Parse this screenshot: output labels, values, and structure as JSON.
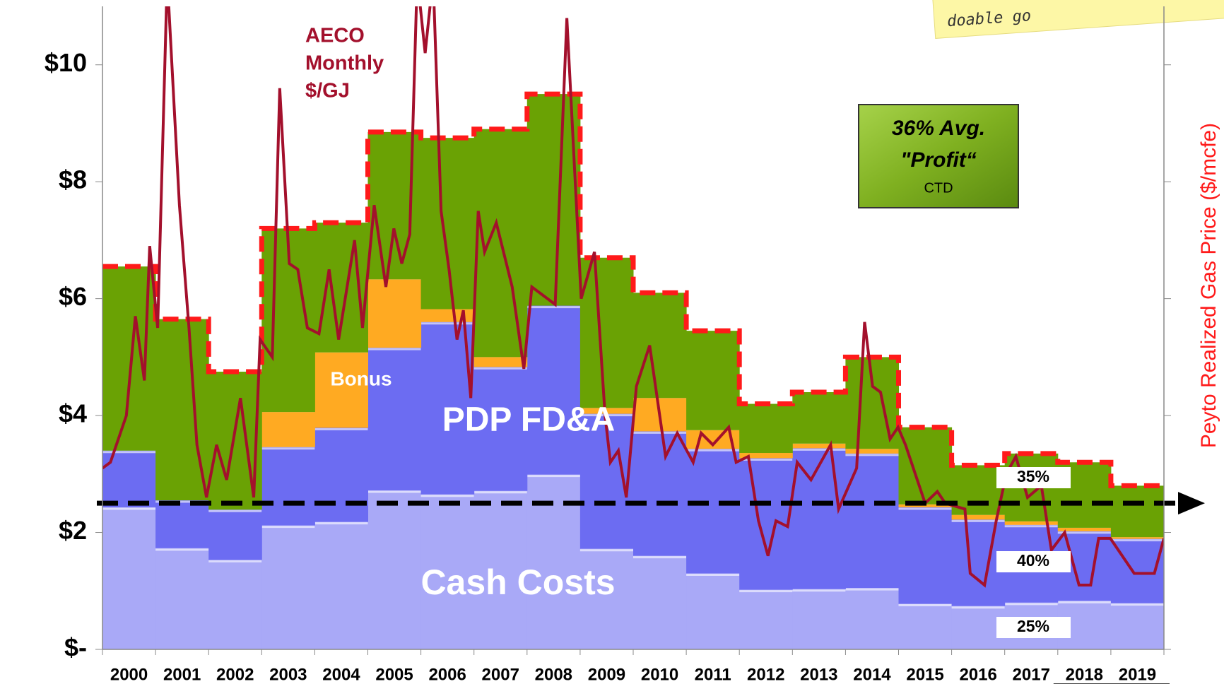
{
  "chart_data": {
    "type": "stacked-step-area",
    "categories": [
      "2000",
      "2001",
      "2002",
      "2003",
      "2004",
      "2005",
      "2006",
      "2007",
      "2008",
      "2009",
      "2010",
      "2011",
      "2012",
      "2013",
      "2014",
      "2015",
      "2016",
      "2017",
      "2018",
      "2019"
    ],
    "series": [
      {
        "name": "Cash Costs",
        "color": "#a9a9f7",
        "values": [
          2.43,
          1.73,
          1.53,
          2.12,
          2.18,
          2.72,
          2.65,
          2.71,
          2.99,
          1.72,
          1.6,
          1.3,
          1.02,
          1.03,
          1.05,
          0.78,
          0.74,
          0.8,
          0.83,
          0.79
        ]
      },
      {
        "name": "PDP FD&A",
        "color": "#6c6cf2",
        "values": [
          0.97,
          0.82,
          0.86,
          1.34,
          1.61,
          2.44,
          2.95,
          2.12,
          2.89,
          2.31,
          2.13,
          2.13,
          2.25,
          2.41,
          2.3,
          1.65,
          1.48,
          1.33,
          1.19,
          1.1
        ]
      },
      {
        "name": "Bonus",
        "color": "#ffaa22",
        "values": [
          0,
          0,
          0,
          0.6,
          1.29,
          1.17,
          0.22,
          0.17,
          0,
          0.1,
          0.57,
          0.32,
          0.09,
          0.08,
          0.08,
          0.05,
          0.08,
          0.06,
          0.06,
          0.03
        ]
      },
      {
        "name": "\"Profit“",
        "color": "#6aa204",
        "values": [
          3.15,
          3.1,
          2.36,
          3.14,
          2.22,
          2.52,
          2.93,
          3.9,
          3.62,
          2.57,
          1.8,
          1.7,
          0.84,
          0.88,
          1.57,
          1.32,
          0.85,
          1.16,
          1.12,
          0.88
        ]
      }
    ],
    "aeco": {
      "color": "#a3102c",
      "x": [
        2000.0,
        2000.15,
        2000.45,
        2000.62,
        2000.79,
        2000.89,
        2001.04,
        2001.22,
        2001.45,
        2001.63,
        2001.78,
        2001.96,
        2002.15,
        2002.34,
        2002.6,
        2002.85,
        2002.97,
        2003.2,
        2003.34,
        2003.52,
        2003.68,
        2003.86,
        2004.08,
        2004.27,
        2004.45,
        2004.75,
        2004.9,
        2005.12,
        2005.34,
        2005.49,
        2005.64,
        2005.79,
        2005.93,
        2006.08,
        2006.23,
        2006.38,
        2006.53,
        2006.68,
        2006.8,
        2006.94,
        2007.08,
        2007.2,
        2007.42,
        2007.72,
        2007.94,
        2008.09,
        2008.53,
        2008.75,
        2009.02,
        2009.27,
        2009.47,
        2009.57,
        2009.72,
        2009.87,
        2010.06,
        2010.31,
        2010.61,
        2010.83,
        2011.13,
        2011.28,
        2011.5,
        2011.8,
        2011.94,
        2012.17,
        2012.36,
        2012.54,
        2012.69,
        2012.91,
        2013.09,
        2013.35,
        2013.72,
        2013.87,
        2014.21,
        2014.36,
        2014.51,
        2014.66,
        2014.84,
        2014.99,
        2015.13,
        2015.5,
        2015.73,
        2015.88,
        2016.25,
        2016.35,
        2016.62,
        2016.84,
        2017.03,
        2017.21,
        2017.43,
        2017.69,
        2017.88,
        2018.13,
        2018.4,
        2018.62,
        2018.77,
        2018.99,
        2019.44,
        2019.82,
        2020.0
      ],
      "values": [
        3.1,
        3.2,
        4.0,
        5.7,
        4.6,
        6.9,
        5.5,
        11.5,
        7.6,
        5.5,
        3.5,
        2.6,
        3.5,
        2.9,
        4.3,
        2.6,
        5.3,
        5.0,
        9.6,
        6.6,
        6.5,
        5.5,
        5.4,
        6.5,
        5.3,
        7.0,
        5.5,
        7.6,
        6.2,
        7.2,
        6.6,
        7.1,
        11.5,
        10.2,
        11.5,
        7.5,
        6.5,
        5.3,
        5.8,
        4.3,
        7.5,
        6.8,
        7.3,
        6.2,
        4.8,
        6.2,
        5.9,
        10.8,
        6.0,
        6.8,
        4.0,
        3.2,
        3.4,
        2.6,
        4.5,
        5.2,
        3.3,
        3.7,
        3.2,
        3.7,
        3.5,
        3.8,
        3.2,
        3.3,
        2.2,
        1.6,
        2.2,
        2.1,
        3.2,
        2.9,
        3.5,
        2.4,
        3.1,
        5.6,
        4.5,
        4.4,
        3.6,
        3.8,
        3.5,
        2.5,
        2.7,
        2.5,
        2.4,
        1.3,
        1.1,
        2.2,
        3.0,
        3.3,
        2.6,
        2.8,
        1.7,
        2.0,
        1.1,
        1.1,
        1.9,
        1.9,
        1.3,
        1.3,
        1.9
      ]
    },
    "aeco_label": [
      "AECO",
      "Monthly",
      "$/GJ"
    ],
    "xlim": [
      2000,
      2020
    ],
    "ylim": [
      0,
      11
    ],
    "yticks": [
      {
        "value": 0,
        "label": "$-"
      },
      {
        "value": 2,
        "label": "$2"
      },
      {
        "value": 4,
        "label": "$4"
      },
      {
        "value": 6,
        "label": "$6"
      },
      {
        "value": 8,
        "label": "$8"
      },
      {
        "value": 10,
        "label": "$10"
      }
    ],
    "y2_label": "Peyto Realized Gas Price ($/mcfe)",
    "outline_color": "#ff1a1a",
    "target_line": 2.5,
    "profit_box": [
      "36% Avg.",
      "CTD"
    ],
    "share_labels": [
      "35%",
      "40%",
      "25%"
    ],
    "note": "doable go"
  }
}
